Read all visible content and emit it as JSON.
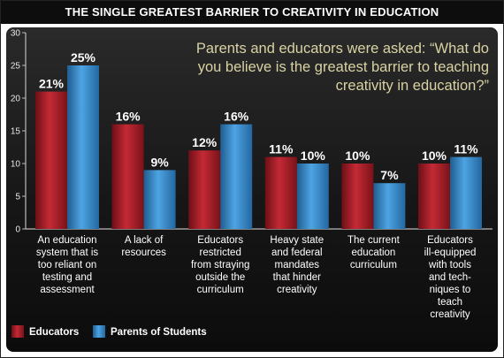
{
  "title": "THE  SINGLE GREATEST BARRIER TO CREATIVITY IN  EDUCATION",
  "question": "Parents and educators were asked: “What do you believe is the greatest barrier to teaching creativity in education?”",
  "colors": {
    "educators": "#b01e28",
    "parents": "#3a8fd0",
    "question_text": "#d9d2a3",
    "background": "#1a1a1a"
  },
  "legend": {
    "placement": "bottom-left"
  },
  "chart_data": {
    "type": "bar",
    "ylim": [
      0,
      30
    ],
    "yticks": [
      "0",
      "5",
      "10",
      "15",
      "20",
      "25",
      "30"
    ],
    "grid": false,
    "categories": [
      "An education system that is too reliant on testing and assessment",
      "A lack of resources",
      "Educators restricted from straying outside the curriculum",
      "Heavy state and federal mandates that hinder creativity",
      "The current education curriculum",
      "Educators ill-equipped with tools and tech- niques to teach creativity"
    ],
    "category_lines": [
      [
        "An education",
        "system that is",
        "too reliant on",
        "testing and",
        "assessment"
      ],
      [
        "A lack of",
        "resources"
      ],
      [
        "Educators",
        "restricted",
        "from straying",
        "outside the",
        "curriculum"
      ],
      [
        "Heavy state",
        "and federal",
        "mandates",
        "that hinder",
        "creativity"
      ],
      [
        "The current",
        "education",
        "curriculum"
      ],
      [
        "Educators",
        "ill-equipped",
        "with tools",
        "and tech-",
        "niques to",
        "teach",
        "creativity"
      ]
    ],
    "series": [
      {
        "name": "Educators",
        "values": [
          21,
          16,
          12,
          11,
          10,
          10
        ],
        "labels": [
          "21%",
          "16%",
          "12%",
          "11%",
          "10%",
          "10%"
        ]
      },
      {
        "name": "Parents of Students",
        "values": [
          25,
          9,
          16,
          10,
          7,
          11
        ],
        "labels": [
          "25%",
          "9%",
          "16%",
          "10%",
          "7%",
          "11%"
        ]
      }
    ]
  }
}
